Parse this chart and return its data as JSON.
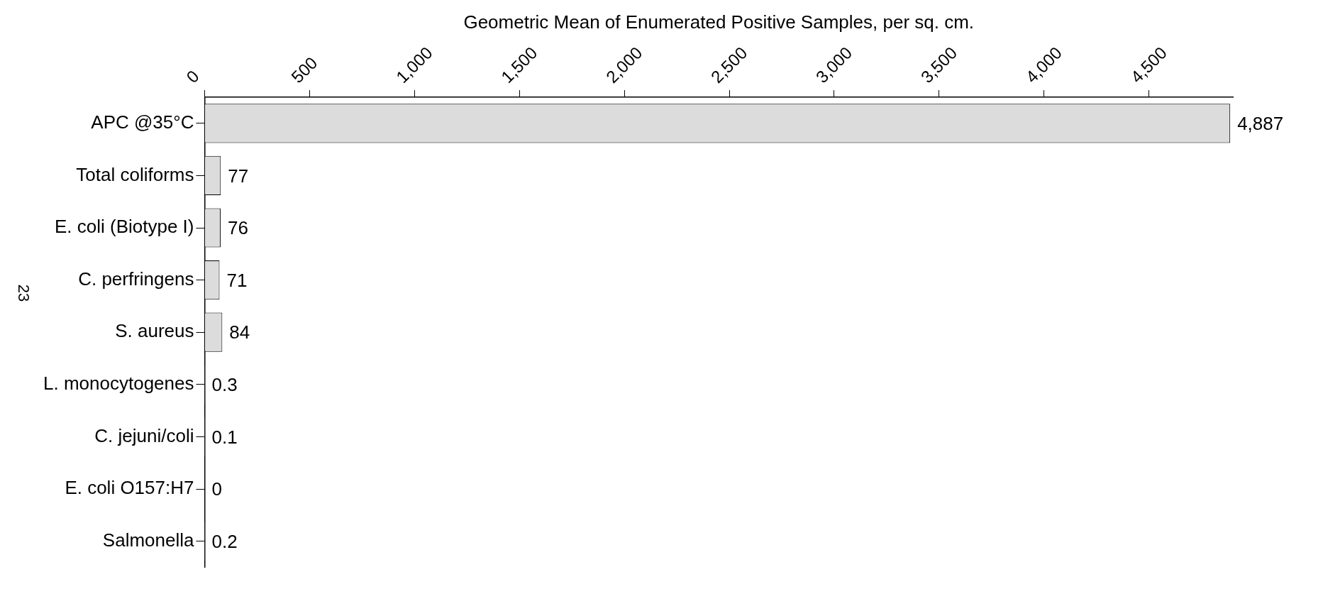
{
  "chart_data": {
    "type": "bar",
    "orientation": "horizontal",
    "xlabel": "Geometric Mean of Enumerated Positive Samples, per sq. cm.",
    "categories": [
      "APC @35°C",
      "Total coliforms",
      "E. coli (Biotype I)",
      "C. perfringens",
      "S. aureus",
      "L. monocytogenes",
      "C. jejuni/coli",
      "E. coli O157:H7",
      "Salmonella"
    ],
    "values": [
      4887,
      77,
      76,
      71,
      84,
      0.3,
      0.1,
      0,
      0.2
    ],
    "color": "#dcdcdc",
    "xlim": [
      0,
      4900
    ],
    "xticks": [
      {
        "value": 0,
        "label": "0"
      },
      {
        "value": 500,
        "label": "500"
      },
      {
        "value": 1000,
        "label": "1,000"
      },
      {
        "value": 1500,
        "label": "1,500"
      },
      {
        "value": 2000,
        "label": "2,000"
      },
      {
        "value": 2500,
        "label": "2,500"
      },
      {
        "value": 3000,
        "label": "3,000"
      },
      {
        "value": 3500,
        "label": "3,500"
      },
      {
        "value": 4000,
        "label": "4,000"
      },
      {
        "value": 4500,
        "label": "4,500"
      }
    ],
    "value_labels": [
      "4,887",
      "77",
      "76",
      "71",
      "84",
      "0.3",
      "0.1",
      "0",
      "0.2"
    ],
    "grid": false,
    "legend": false,
    "annotations": [
      "23"
    ]
  }
}
